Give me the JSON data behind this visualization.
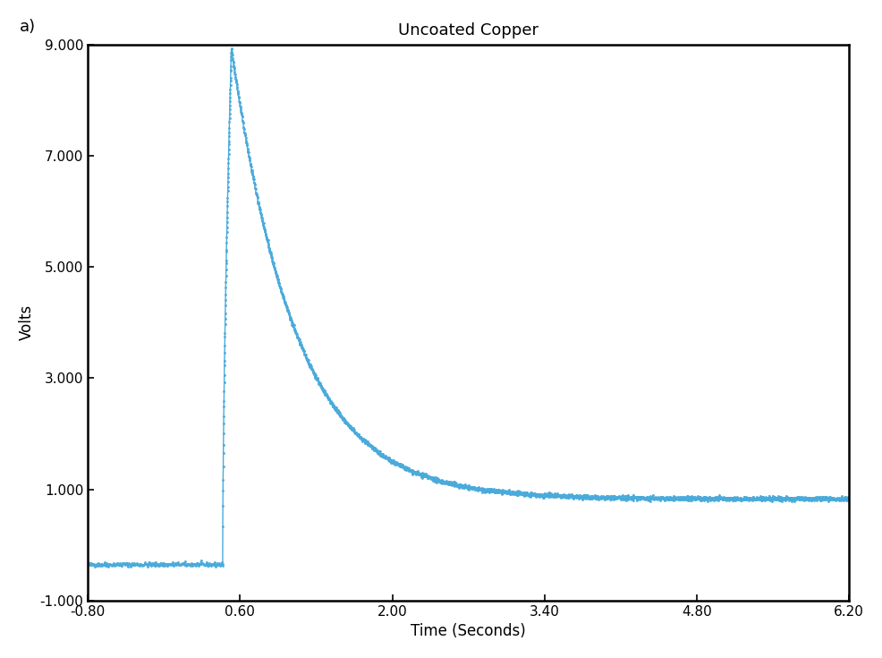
{
  "title": "Uncoated Copper",
  "xlabel": "Time (Seconds)",
  "ylabel": "Volts",
  "panel_label": "a)",
  "line_color": "#4AABDB",
  "background_color": "#ffffff",
  "xlim": [
    -0.8,
    6.2
  ],
  "ylim": [
    -1.0,
    9.0
  ],
  "xticks": [
    -0.8,
    0.6,
    2.0,
    3.4,
    4.8,
    6.2
  ],
  "yticks": [
    -1.0,
    1.0,
    3.0,
    5.0,
    7.0,
    9.0
  ],
  "xtick_labels": [
    "-0.80",
    "0.60",
    "2.00",
    "3.40",
    "4.80",
    "6.20"
  ],
  "ytick_labels": [
    "-1.000",
    "1.000",
    "3.000",
    "5.000",
    "7.000",
    "9.000"
  ],
  "baseline_value": -0.35,
  "peak_time": 0.52,
  "peak_value": 8.92,
  "rise_start_time": 0.44,
  "flash_start_time": -0.8,
  "end_value": 0.83,
  "end_time": 6.2,
  "title_fontsize": 13,
  "label_fontsize": 12,
  "tick_fontsize": 11,
  "panel_fontsize": 13
}
